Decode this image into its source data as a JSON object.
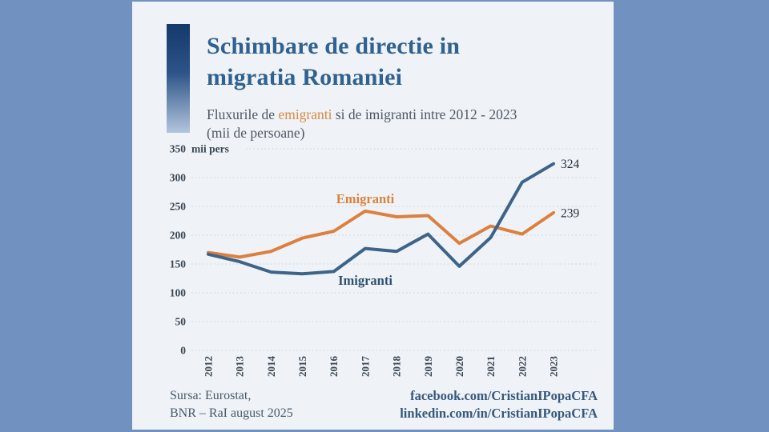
{
  "page": {
    "outer_bg": "#7191C0",
    "card_bg": "#EFF3F7"
  },
  "header": {
    "title_line1": "Schimbare de directie in",
    "title_line2": "migratia Romaniei",
    "subtitle_pre": "Fluxurile de ",
    "subtitle_highlight": "emigranti",
    "subtitle_post": " si de imigranti intre 2012 - 2023",
    "subtitle_line2": "(mii de persoane)",
    "title_color": "#31628F",
    "highlight_color": "#D98A3F"
  },
  "chart_data": {
    "type": "line",
    "title": "Fluxurile de emigranti si de imigranti intre 2012 - 2023 (mii de persoane)",
    "x": [
      2012,
      2013,
      2014,
      2015,
      2016,
      2017,
      2018,
      2019,
      2020,
      2021,
      2022,
      2023
    ],
    "series": [
      {
        "name": "Emigranti",
        "color": "#DC7F3F",
        "label_color": "#D9823C",
        "values": [
          170,
          162,
          172,
          195,
          207,
          242,
          232,
          234,
          186,
          216,
          202,
          239
        ],
        "end_label": "239"
      },
      {
        "name": "Imigranti",
        "color": "#3D6488",
        "label_color": "#2F5070",
        "values": [
          167,
          154,
          136,
          133,
          137,
          177,
          172,
          202,
          146,
          196,
          292,
          324
        ],
        "end_label": "324"
      }
    ],
    "ylim": [
      0,
      350
    ],
    "ytick_step": 50,
    "ytick_suffix": "mii pers",
    "grid": true,
    "grid_style": "dotted",
    "legend_position": "inline-annotations",
    "axis_text_color": "#3A4754",
    "end_label_color": "#27313D",
    "grid_color": "#C7D0D9"
  },
  "footer": {
    "source_line1": "Sursa: Eurostat,",
    "source_line2": "BNR – RaI august 2025",
    "link1": "facebook.com/CristianIPopaCFA",
    "link2": "linkedin.com/in/CristianIPopaCFA"
  }
}
